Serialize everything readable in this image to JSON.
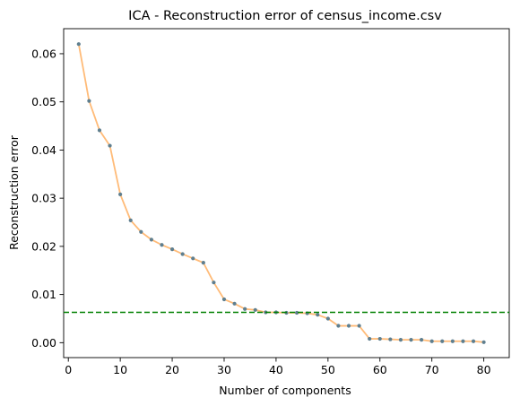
{
  "chart_data": {
    "type": "line",
    "title": "ICA - Reconstruction error of census_income.csv",
    "xlabel": "Number of components",
    "ylabel": "Reconstruction error",
    "xlim": [
      -0.9,
      84.9
    ],
    "ylim": [
      -0.0031,
      0.0652
    ],
    "xticks": [
      0,
      10,
      20,
      30,
      40,
      50,
      60,
      70,
      80
    ],
    "yticks": [
      0.0,
      0.01,
      0.02,
      0.03,
      0.04,
      0.05,
      0.06
    ],
    "ytick_labels": [
      "0.00",
      "0.01",
      "0.02",
      "0.03",
      "0.04",
      "0.05",
      "0.06"
    ],
    "grid": false,
    "series": [
      {
        "line_color": "#ffbb78",
        "marker_color": "#5f7f8f",
        "x": [
          2,
          4,
          6,
          8,
          10,
          12,
          14,
          16,
          18,
          20,
          22,
          24,
          26,
          28,
          30,
          32,
          34,
          36,
          38,
          40,
          42,
          44,
          46,
          48,
          50,
          52,
          54,
          56,
          58,
          60,
          62,
          64,
          66,
          68,
          70,
          72,
          74,
          76,
          78,
          80
        ],
        "y": [
          0.062,
          0.0502,
          0.0441,
          0.0409,
          0.0308,
          0.0254,
          0.023,
          0.0214,
          0.0203,
          0.0194,
          0.0184,
          0.0175,
          0.0166,
          0.0125,
          0.009,
          0.0081,
          0.007,
          0.0068,
          0.0063,
          0.0063,
          0.0062,
          0.0062,
          0.0061,
          0.0058,
          0.005,
          0.0035,
          0.0035,
          0.0035,
          0.0008,
          0.0008,
          0.0007,
          0.0006,
          0.0006,
          0.0006,
          0.0003,
          0.0003,
          0.0003,
          0.0003,
          0.0003,
          0.0001
        ]
      }
    ],
    "reference_line": {
      "orientation": "horizontal",
      "y": 0.0063,
      "style": "dashed",
      "color": "#008000"
    }
  }
}
